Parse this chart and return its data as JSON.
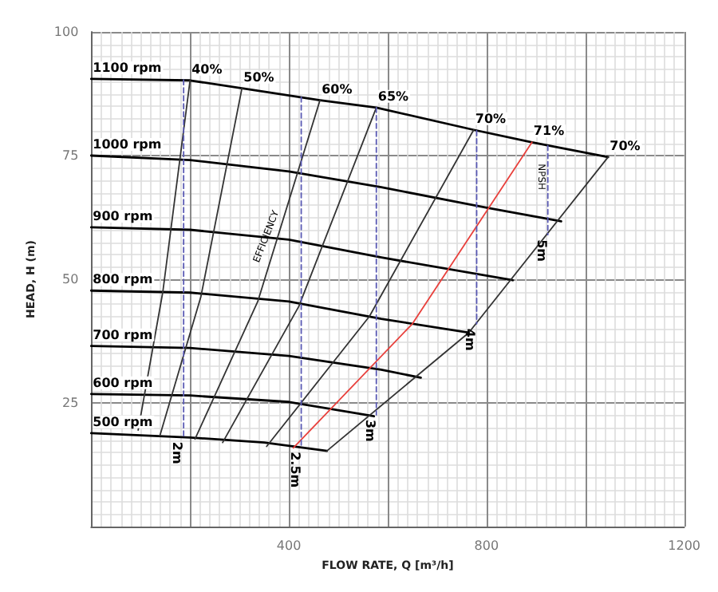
{
  "chart_data": {
    "type": "line",
    "xlabel": "FLOW RATE, Q [m³/h]",
    "ylabel": "HEAD, H (m)",
    "xlim": [
      0,
      1200
    ],
    "xticks": [
      {
        "value": 200,
        "label": null
      },
      400,
      {
        "value": 600,
        "label": null
      },
      800,
      {
        "value": 1000,
        "label": null
      },
      1200
    ],
    "ylim": [
      0,
      100
    ],
    "yticks": [
      25,
      50,
      75,
      100
    ],
    "grid": true,
    "legend": false,
    "marker": "none",
    "annotations": [
      {
        "text": "EFFICIENCY",
        "x": 355,
        "y": 58.6
      },
      {
        "text": "NPSH",
        "x": 910,
        "y": 70.7
      }
    ],
    "series": [
      {
        "name": "1100 rpm",
        "color": "#000000",
        "line_style": "solid",
        "x": [
          0,
          200,
          305,
          463,
          577,
          774,
          892,
          1046
        ],
        "values": [
          90.5,
          90.2,
          88.6,
          86.2,
          84.7,
          80.2,
          77.7,
          74.7
        ]
      },
      {
        "name": "1000 rpm",
        "color": "#000000",
        "line_style": "solid",
        "x": [
          0,
          200,
          400,
          587,
          803,
          951
        ],
        "values": [
          75,
          74.1,
          71.8,
          68.6,
          64.4,
          61.7
        ]
      },
      {
        "name": "900 rpm",
        "color": "#000000",
        "line_style": "solid",
        "x": [
          0,
          200,
          400,
          587,
          853
        ],
        "values": [
          60.5,
          60,
          58,
          54.4,
          49.8
        ]
      },
      {
        "name": "800 rpm",
        "color": "#000000",
        "line_style": "solid",
        "x": [
          0,
          200,
          400,
          587,
          764
        ],
        "values": [
          47.7,
          47.3,
          45.5,
          42,
          39.2
        ]
      },
      {
        "name": "700 rpm",
        "color": "#000000",
        "line_style": "solid",
        "x": [
          0,
          200,
          400,
          587,
          667
        ],
        "values": [
          36.5,
          36.1,
          34.5,
          31.7,
          30.1
        ]
      },
      {
        "name": "600 rpm",
        "color": "#000000",
        "line_style": "solid",
        "x": [
          0,
          200,
          400,
          572
        ],
        "values": [
          26.8,
          26.5,
          25.2,
          22.3
        ]
      },
      {
        "name": "500 rpm",
        "color": "#000000",
        "line_style": "solid",
        "x": [
          0,
          200,
          350,
          477
        ],
        "values": [
          18.9,
          18,
          17,
          15.3
        ]
      },
      {
        "name": "40%",
        "color": "#333333",
        "line_style": "solid",
        "x": [
          200,
          145,
          95
        ],
        "values": [
          90.2,
          47.5,
          19.5
        ]
      },
      {
        "name": "50%",
        "color": "#333333",
        "line_style": "solid",
        "x": [
          305,
          222,
          139
        ],
        "values": [
          88.6,
          46.5,
          18.4
        ]
      },
      {
        "name": "60%",
        "color": "#333333",
        "line_style": "solid",
        "x": [
          463,
          337,
          210
        ],
        "values": [
          86.2,
          45.5,
          17.7
        ]
      },
      {
        "name": "65%",
        "color": "#333333",
        "line_style": "solid",
        "x": [
          577,
          420,
          266
        ],
        "values": [
          84.7,
          44.5,
          17
        ]
      },
      {
        "name": "70%",
        "color": "#333333",
        "line_style": "solid",
        "x": [
          774,
          563,
          355
        ],
        "values": [
          80.2,
          42.5,
          16.2
        ]
      },
      {
        "name": "71%",
        "color": "#e8403c",
        "line_style": "solid",
        "x": [
          892,
          650,
          409
        ],
        "values": [
          77.7,
          41,
          15.9
        ]
      },
      {
        "name": "70%",
        "color": "#333333",
        "line_style": "solid",
        "x": [
          1046,
          764,
          477
        ],
        "values": [
          74.7,
          39.2,
          15.3
        ]
      },
      {
        "name": "2m",
        "color": "#5a5ab4",
        "line_style": "dashed",
        "x": [
          187,
          187
        ],
        "values": [
          90.3,
          18.1
        ]
      },
      {
        "name": "2.5m",
        "color": "#5a5ab4",
        "line_style": "dashed",
        "x": [
          425,
          425
        ],
        "values": [
          86.8,
          16.1
        ]
      },
      {
        "name": "3m",
        "color": "#5a5ab4",
        "line_style": "dashed",
        "x": [
          577,
          577
        ],
        "values": [
          84.7,
          22.6
        ]
      },
      {
        "name": "4m",
        "color": "#5a5ab4",
        "line_style": "dashed",
        "x": [
          780,
          780
        ],
        "values": [
          80,
          41
        ]
      },
      {
        "name": "5m",
        "color": "#5a5ab4",
        "line_style": "dashed",
        "x": [
          924,
          924
        ],
        "values": [
          77,
          59
        ]
      }
    ]
  }
}
